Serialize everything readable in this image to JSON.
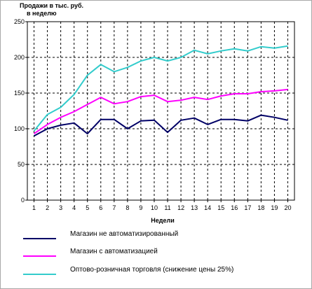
{
  "chart_data": {
    "type": "line",
    "ylabel": "Продажи в тыс. руб.\nв неделю",
    "xlabel": "Недели",
    "x": [
      1,
      2,
      3,
      4,
      5,
      6,
      7,
      8,
      9,
      10,
      11,
      12,
      13,
      14,
      15,
      16,
      17,
      18,
      19,
      20
    ],
    "ylim": [
      0,
      250
    ],
    "yticks": [
      0,
      50,
      100,
      150,
      200,
      250
    ],
    "grid": true,
    "legend_position": "bottom",
    "series": [
      {
        "name": "Магазин не автоматизированный",
        "color": "#000066",
        "values": [
          90,
          100,
          105,
          108,
          93,
          113,
          113,
          100,
          111,
          112,
          95,
          112,
          115,
          106,
          113,
          113,
          111,
          119,
          116,
          112
        ]
      },
      {
        "name": "Магазин с автоматизацией",
        "color": "#ff00ff",
        "values": [
          93,
          106,
          116,
          124,
          134,
          144,
          135,
          138,
          145,
          147,
          138,
          140,
          144,
          141,
          146,
          149,
          149,
          152,
          153,
          155
        ]
      },
      {
        "name": "Оптово-розничная торговля (снижение цены 25%)",
        "color": "#33cccc",
        "values": [
          97,
          120,
          130,
          148,
          175,
          190,
          180,
          186,
          195,
          200,
          195,
          200,
          210,
          205,
          209,
          212,
          209,
          215,
          213,
          216
        ]
      }
    ]
  }
}
